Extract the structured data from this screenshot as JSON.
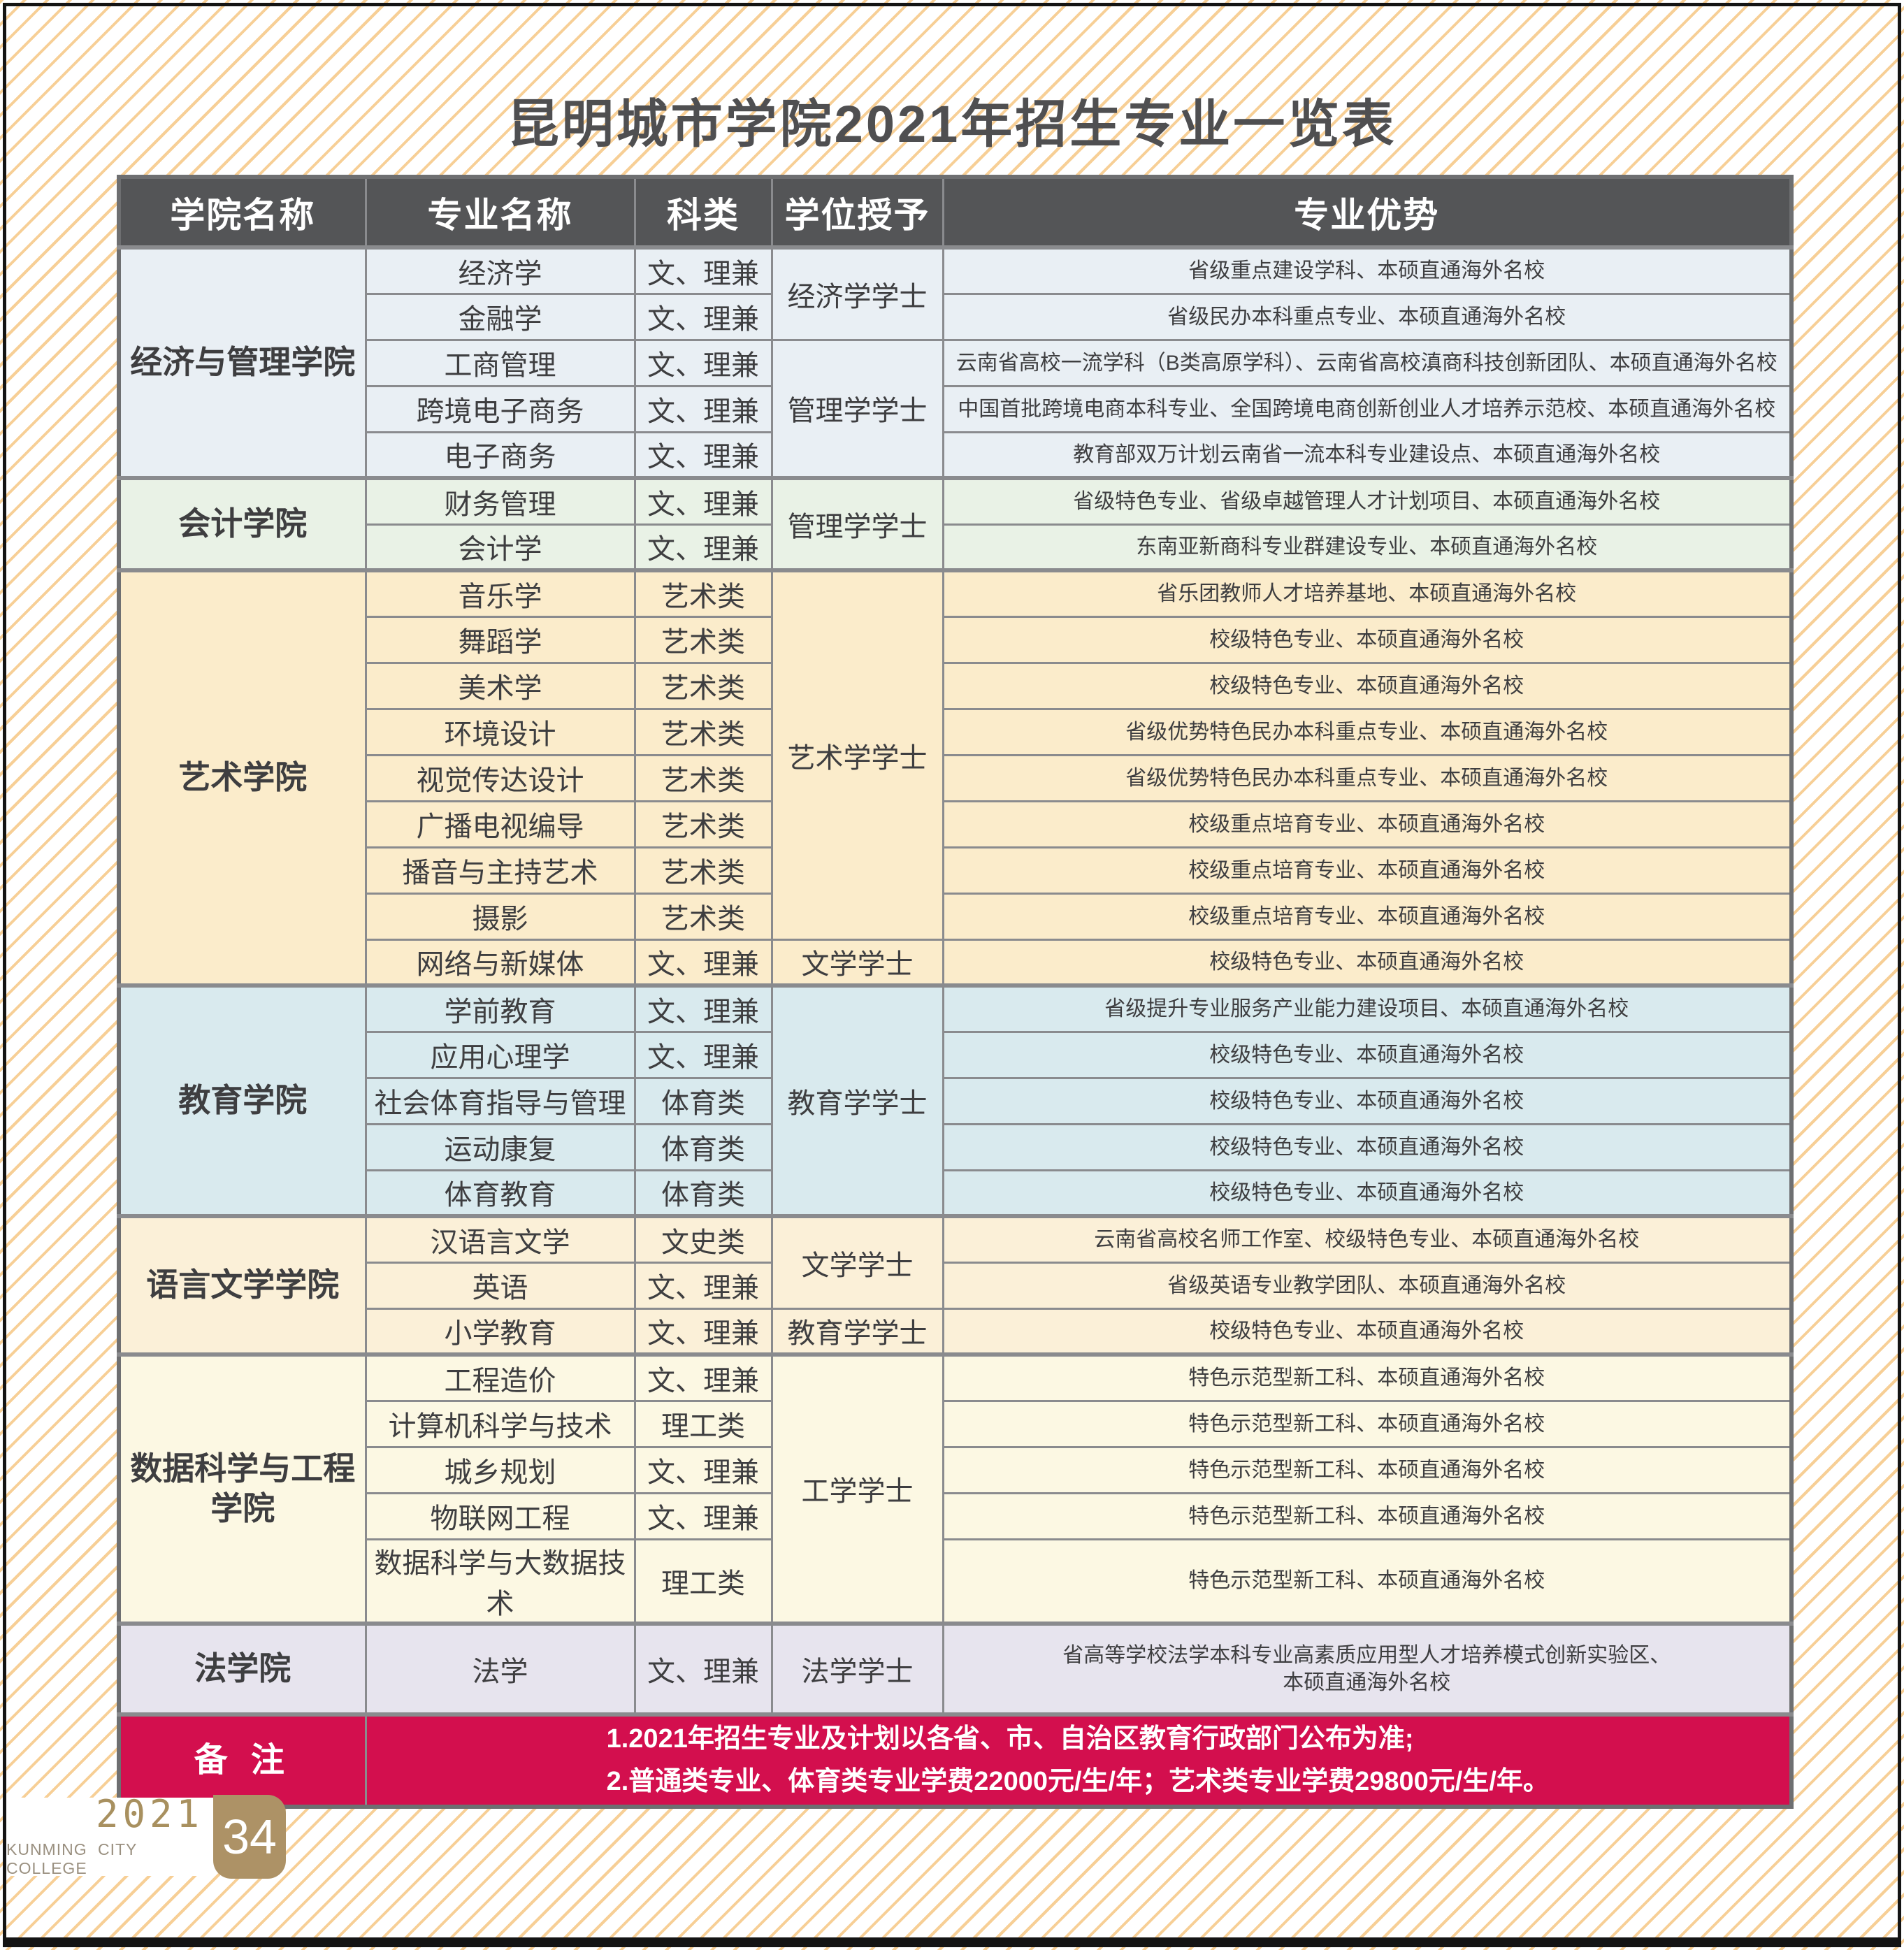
{
  "page_title": "昆明城市学院2021年招生专业一览表",
  "table": {
    "headers": [
      "学院名称",
      "专业名称",
      "科类",
      "学位授予",
      "专业优势"
    ],
    "colors": {
      "header_bg": "#545557",
      "grid_line": "#8a8b8e",
      "body_text": "#3e3e40"
    },
    "colleges": [
      {
        "name": "经济与管理学院",
        "color": "#e9eff4",
        "degrees": [
          {
            "label": "经济学学士",
            "span": 2
          },
          {
            "label": "管理学学士",
            "span": 3
          }
        ],
        "rows": [
          {
            "major": "经济学",
            "category": "文、理兼",
            "advantage": "省级重点建设学科、本硕直通海外名校"
          },
          {
            "major": "金融学",
            "category": "文、理兼",
            "advantage": "省级民办本科重点专业、本硕直通海外名校"
          },
          {
            "major": "工商管理",
            "category": "文、理兼",
            "advantage": "云南省高校一流学科（B类高原学科）、云南省高校滇商科技创新团队、本硕直通海外名校"
          },
          {
            "major": "跨境电子商务",
            "category": "文、理兼",
            "advantage": "中国首批跨境电商本科专业、全国跨境电商创新创业人才培养示范校、本硕直通海外名校"
          },
          {
            "major": "电子商务",
            "category": "文、理兼",
            "advantage": "教育部双万计划云南省一流本科专业建设点、本硕直通海外名校"
          }
        ]
      },
      {
        "name": "会计学院",
        "color": "#e9f2e6",
        "degrees": [
          {
            "label": "管理学学士",
            "span": 2
          }
        ],
        "rows": [
          {
            "major": "财务管理",
            "category": "文、理兼",
            "advantage": "省级特色专业、省级卓越管理人才计划项目、本硕直通海外名校"
          },
          {
            "major": "会计学",
            "category": "文、理兼",
            "advantage": "东南亚新商科专业群建设专业、本硕直通海外名校"
          }
        ]
      },
      {
        "name": "艺术学院",
        "color": "#fbeccb",
        "degrees": [
          {
            "label": "艺术学学士",
            "span": 8
          },
          {
            "label": "文学学士",
            "span": 1
          }
        ],
        "rows": [
          {
            "major": "音乐学",
            "category": "艺术类",
            "advantage": "省乐团教师人才培养基地、本硕直通海外名校"
          },
          {
            "major": "舞蹈学",
            "category": "艺术类",
            "advantage": "校级特色专业、本硕直通海外名校"
          },
          {
            "major": "美术学",
            "category": "艺术类",
            "advantage": "校级特色专业、本硕直通海外名校"
          },
          {
            "major": "环境设计",
            "category": "艺术类",
            "advantage": "省级优势特色民办本科重点专业、本硕直通海外名校"
          },
          {
            "major": "视觉传达设计",
            "category": "艺术类",
            "advantage": "省级优势特色民办本科重点专业、本硕直通海外名校"
          },
          {
            "major": "广播电视编导",
            "category": "艺术类",
            "advantage": "校级重点培育专业、本硕直通海外名校"
          },
          {
            "major": "播音与主持艺术",
            "category": "艺术类",
            "advantage": "校级重点培育专业、本硕直通海外名校"
          },
          {
            "major": "摄影",
            "category": "艺术类",
            "advantage": "校级重点培育专业、本硕直通海外名校"
          },
          {
            "major": "网络与新媒体",
            "category": "文、理兼",
            "advantage": "校级特色专业、本硕直通海外名校"
          }
        ]
      },
      {
        "name": "教育学院",
        "color": "#d9eaee",
        "degrees": [
          {
            "label": "教育学学士",
            "span": 5
          }
        ],
        "rows": [
          {
            "major": "学前教育",
            "category": "文、理兼",
            "advantage": "省级提升专业服务产业能力建设项目、本硕直通海外名校"
          },
          {
            "major": "应用心理学",
            "category": "文、理兼",
            "advantage": "校级特色专业、本硕直通海外名校"
          },
          {
            "major": "社会体育指导与管理",
            "category": "体育类",
            "advantage": "校级特色专业、本硕直通海外名校"
          },
          {
            "major": "运动康复",
            "category": "体育类",
            "advantage": "校级特色专业、本硕直通海外名校"
          },
          {
            "major": "体育教育",
            "category": "体育类",
            "advantage": "校级特色专业、本硕直通海外名校"
          }
        ]
      },
      {
        "name": "语言文学学院",
        "color": "#fbf0d8",
        "degrees": [
          {
            "label": "文学学士",
            "span": 2
          },
          {
            "label": "教育学学士",
            "span": 1
          }
        ],
        "rows": [
          {
            "major": "汉语言文学",
            "category": "文史类",
            "advantage": "云南省高校名师工作室、校级特色专业、本硕直通海外名校"
          },
          {
            "major": "英语",
            "category": "文、理兼",
            "advantage": "省级英语专业教学团队、本硕直通海外名校"
          },
          {
            "major": "小学教育",
            "category": "文、理兼",
            "advantage": "校级特色专业、本硕直通海外名校"
          }
        ]
      },
      {
        "name": "数据科学与工程学院",
        "color": "#fcf8e3",
        "degrees": [
          {
            "label": "工学学士",
            "span": 5
          }
        ],
        "rows": [
          {
            "major": "工程造价",
            "category": "文、理兼",
            "advantage": "特色示范型新工科、本硕直通海外名校"
          },
          {
            "major": "计算机科学与技术",
            "category": "理工类",
            "advantage": "特色示范型新工科、本硕直通海外名校"
          },
          {
            "major": "城乡规划",
            "category": "文、理兼",
            "advantage": "特色示范型新工科、本硕直通海外名校"
          },
          {
            "major": "物联网工程",
            "category": "文、理兼",
            "advantage": "特色示范型新工科、本硕直通海外名校"
          },
          {
            "major": "数据科学与大数据技术",
            "category": "理工类",
            "advantage": "特色示范型新工科、本硕直通海外名校"
          }
        ]
      },
      {
        "name": "法学院",
        "color": "#e7e4ee",
        "tall": true,
        "degrees": [
          {
            "label": "法学学士",
            "span": 1
          }
        ],
        "rows": [
          {
            "major": "法学",
            "category": "文、理兼",
            "advantage": "省高等学校法学本科专业高素质应用型人才培养模式创新实验区、\n本硕直通海外名校"
          }
        ]
      }
    ]
  },
  "remark": {
    "label": "备 注",
    "color": "#d30f4e",
    "lines": [
      "1.2021年招生专业及计划以各省、市、自治区教育行政部门公布为准;",
      "2.普通类专业、体育类专业学费22000元/生/年；艺术类专业学费29800元/生/年。"
    ]
  },
  "footer": {
    "year": "2021",
    "college_en": "KUNMING  CITY  COLLEGE",
    "page": "34",
    "accent_color": "#ad9266"
  }
}
